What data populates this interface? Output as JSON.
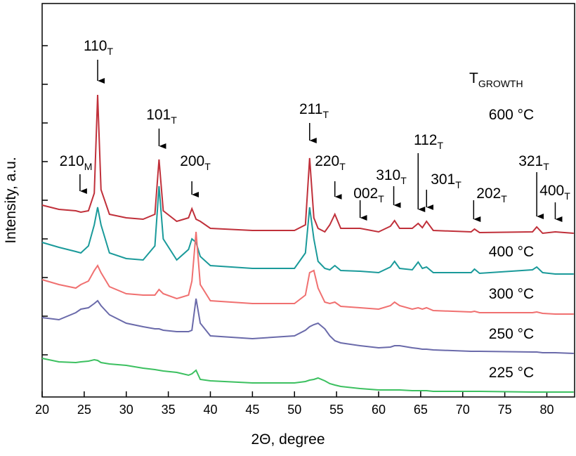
{
  "chart_data": {
    "type": "line",
    "xlabel": "2Θ, degree",
    "ylabel": "Intensity, a.u.",
    "legend_title": {
      "label": "T",
      "subscript": "GROWTH"
    },
    "xlim": [
      20,
      83.3
    ],
    "ylim": [
      0,
      560
    ],
    "xticks": [
      20,
      25,
      30,
      35,
      40,
      45,
      50,
      55,
      60,
      65,
      70,
      75,
      80
    ],
    "yticks": [
      60,
      115,
      170,
      225,
      280,
      335,
      390,
      445,
      500
    ],
    "x": [
      20,
      22,
      24,
      24.6,
      25.5,
      26.2,
      26.6,
      27,
      28,
      30,
      32,
      33.4,
      33.9,
      34.4,
      36,
      37.4,
      37.8,
      38.3,
      38.8,
      40,
      45,
      50,
      51.3,
      51.8,
      52.3,
      52.8,
      53.6,
      54.2,
      54.8,
      55.5,
      57.8,
      60,
      61.4,
      61.9,
      62.5,
      64,
      64.7,
      65.2,
      65.7,
      66.5,
      71,
      71.4,
      72,
      78.3,
      78.8,
      79.5,
      81,
      83.2
    ],
    "series": [
      {
        "name": "600 °C",
        "color": "#c0303a",
        "values": [
          273,
          267,
          265,
          263,
          265,
          290,
          430,
          295,
          260,
          255,
          253,
          260,
          338,
          265,
          250,
          255,
          268,
          253,
          250,
          240,
          237,
          237,
          245,
          340,
          255,
          240,
          235,
          245,
          260,
          240,
          240,
          235,
          243,
          251,
          240,
          240,
          247,
          241,
          250,
          237,
          235,
          239,
          234,
          235,
          242,
          233,
          235,
          233
        ]
      },
      {
        "name": "400 °C",
        "color": "#1a9a9a",
        "values": [
          220,
          213,
          207,
          205,
          215,
          245,
          270,
          245,
          205,
          197,
          195,
          215,
          300,
          225,
          195,
          210,
          225,
          220,
          200,
          187,
          183,
          183,
          205,
          270,
          225,
          193,
          183,
          181,
          187,
          180,
          179,
          177,
          185,
          193,
          183,
          181,
          192,
          183,
          185,
          177,
          177,
          182,
          176,
          181,
          185,
          177,
          175,
          175
        ]
      },
      {
        "name": "300 °C",
        "color": "#f07070",
        "values": [
          167,
          160,
          155,
          160,
          165,
          180,
          187,
          177,
          157,
          147,
          145,
          145,
          153,
          147,
          140,
          145,
          165,
          235,
          160,
          137,
          133,
          133,
          145,
          177,
          180,
          155,
          135,
          133,
          135,
          129,
          127,
          125,
          130,
          135,
          130,
          125,
          127,
          125,
          127,
          123,
          121,
          122,
          120,
          120,
          121,
          119,
          118,
          118
        ]
      },
      {
        "name": "250 °C",
        "color": "#6a6aaa",
        "values": [
          113,
          110,
          120,
          125,
          127,
          133,
          137,
          130,
          117,
          105,
          100,
          97,
          97,
          95,
          93,
          93,
          95,
          140,
          105,
          87,
          83,
          87,
          95,
          100,
          103,
          105,
          97,
          87,
          80,
          77,
          73,
          70,
          71,
          73,
          73,
          70,
          69,
          68,
          68,
          67,
          65,
          65,
          65,
          64,
          64,
          63,
          63,
          62
        ]
      },
      {
        "name": "225 °C",
        "color": "#3cc060",
        "values": [
          55,
          50,
          49,
          50,
          51,
          53,
          52,
          49,
          47,
          45,
          41,
          39,
          38,
          37,
          35,
          31,
          33,
          38,
          25,
          23,
          20,
          20,
          22,
          24,
          25,
          27,
          23,
          19,
          17,
          15,
          12,
          10,
          10,
          10,
          10,
          9,
          9,
          9,
          9,
          8,
          8,
          8,
          8,
          7,
          7,
          7,
          7,
          7
        ]
      }
    ],
    "annotations": [
      {
        "label": "210",
        "subscript": "M",
        "x": 24.5
      },
      {
        "label": "110",
        "subscript": "T",
        "x": 26.6
      },
      {
        "label": "101",
        "subscript": "T",
        "x": 33.9
      },
      {
        "label": "200",
        "subscript": "T",
        "x": 37.8
      },
      {
        "label": "211",
        "subscript": "T",
        "x": 51.8
      },
      {
        "label": "220",
        "subscript": "T",
        "x": 54.8
      },
      {
        "label": "002",
        "subscript": "T",
        "x": 57.8
      },
      {
        "label": "310",
        "subscript": "T",
        "x": 61.8
      },
      {
        "label": "112",
        "subscript": "T",
        "x": 64.7
      },
      {
        "label": "301",
        "subscript": "T",
        "x": 65.7
      },
      {
        "label": "202",
        "subscript": "T",
        "x": 71.3
      },
      {
        "label": "321",
        "subscript": "T",
        "x": 78.8
      },
      {
        "label": "400",
        "subscript": "T",
        "x": 81
      }
    ]
  }
}
